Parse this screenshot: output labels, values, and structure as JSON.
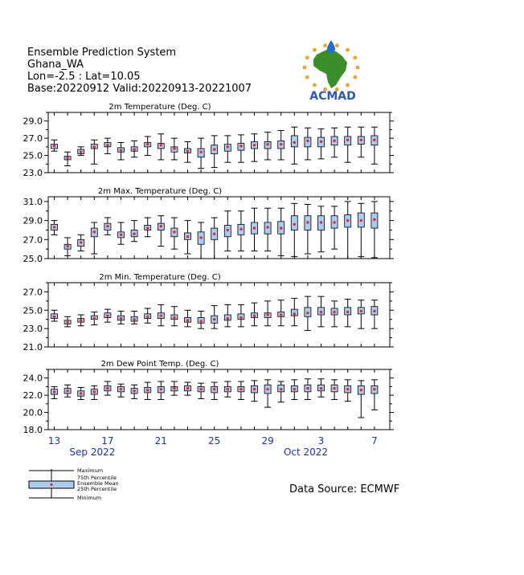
{
  "header": {
    "title": "Ensemble Prediction System",
    "region": "Ghana_WA",
    "coords": "Lon=-2.5 : Lat=10.05",
    "base_valid": "Base:20220912 Valid:20220913-20221007"
  },
  "logo": {
    "text": "ACMAD",
    "colors": {
      "africa": "#3a8f2b",
      "drop": "#1e6fd6",
      "sun": "#f2a21e",
      "text": "#2a57b8"
    }
  },
  "source": "Data Source: ECMWF",
  "colors": {
    "box": "#a9cdf2",
    "mean": "#e8232b",
    "axis": "#000000",
    "date": "#1a2fc8"
  },
  "x_axis": {
    "ticks": [
      {
        "day": 1,
        "label": "13"
      },
      {
        "day": 5,
        "label": "17"
      },
      {
        "day": 9,
        "label": "21"
      },
      {
        "day": 13,
        "label": "25"
      },
      {
        "day": 17,
        "label": "29"
      },
      {
        "day": 21,
        "label": "3"
      },
      {
        "day": 25,
        "label": "7"
      }
    ],
    "months": [
      {
        "day": 5,
        "label": "Sep 2022"
      },
      {
        "day": 21,
        "label": "Oct 2022"
      }
    ]
  },
  "legend": {
    "items": [
      "Maximum",
      "75th Percentile",
      "Ensemble Mean",
      "25th Percentile",
      "Minimum"
    ]
  },
  "chart_data": [
    {
      "type": "boxplot",
      "title": "2m Temperature (Deg. C)",
      "ylim": [
        23.0,
        30.0
      ],
      "yticks": [
        "29.0",
        "27.0",
        "25.0",
        "23.0"
      ],
      "ytick_values": [
        29,
        27,
        25,
        23
      ],
      "x": [
        1,
        2,
        3,
        4,
        5,
        6,
        7,
        8,
        9,
        10,
        11,
        12,
        13,
        14,
        15,
        16,
        17,
        18,
        19,
        20,
        21,
        22,
        23,
        24,
        25
      ],
      "min": [
        25.5,
        23.8,
        25.0,
        24.0,
        25.2,
        24.5,
        24.8,
        25.0,
        24.5,
        24.5,
        24.2,
        23.5,
        23.6,
        24.2,
        24.2,
        24.3,
        24.5,
        24.5,
        24.0,
        24.5,
        24.6,
        24.8,
        24.2,
        24.8,
        24.0
      ],
      "q1": [
        25.8,
        24.5,
        25.2,
        25.8,
        26.0,
        25.4,
        25.5,
        26.0,
        25.8,
        25.4,
        25.3,
        24.8,
        25.2,
        25.5,
        25.6,
        25.8,
        25.8,
        25.8,
        26.0,
        26.0,
        26.0,
        26.2,
        26.2,
        26.3,
        26.2
      ],
      "mean": [
        26.1,
        24.7,
        25.4,
        26.0,
        26.2,
        25.6,
        25.7,
        26.3,
        26.2,
        25.8,
        25.5,
        25.4,
        25.7,
        26.0,
        26.1,
        26.2,
        26.3,
        26.3,
        26.5,
        26.7,
        26.6,
        26.7,
        26.8,
        26.8,
        26.8
      ],
      "q3": [
        26.3,
        24.9,
        25.7,
        26.3,
        26.5,
        25.9,
        26.0,
        26.5,
        26.4,
        26.0,
        25.8,
        25.8,
        26.2,
        26.3,
        26.4,
        26.6,
        26.6,
        26.7,
        27.3,
        27.1,
        27.1,
        27.2,
        27.2,
        27.2,
        27.3
      ],
      "max": [
        26.8,
        25.4,
        26.0,
        26.8,
        27.0,
        26.5,
        26.7,
        27.2,
        27.5,
        27.0,
        26.6,
        27.0,
        27.3,
        27.3,
        27.4,
        27.5,
        27.7,
        27.9,
        28.3,
        28.2,
        28.1,
        28.2,
        28.3,
        28.3,
        28.3
      ]
    },
    {
      "type": "boxplot",
      "title": "2m Max. Temperature (Deg. C)",
      "ylim": [
        25.0,
        31.5
      ],
      "yticks": [
        "31.0",
        "29.0",
        "27.0",
        "25.0"
      ],
      "ytick_values": [
        31,
        29,
        27,
        25
      ],
      "x": [
        1,
        2,
        3,
        4,
        5,
        6,
        7,
        8,
        9,
        10,
        11,
        12,
        13,
        14,
        15,
        16,
        17,
        18,
        19,
        20,
        21,
        22,
        23,
        24,
        25
      ],
      "min": [
        27.5,
        25.3,
        25.8,
        25.5,
        27.5,
        26.5,
        26.8,
        27.3,
        26.3,
        26.0,
        25.5,
        25.0,
        25.0,
        25.8,
        25.8,
        25.8,
        25.8,
        25.3,
        25.2,
        25.5,
        25.7,
        26.0,
        25.0,
        25.2,
        25.1
      ],
      "q1": [
        28.0,
        26.0,
        26.3,
        27.3,
        28.0,
        27.2,
        27.3,
        28.0,
        28.0,
        27.3,
        27.0,
        26.5,
        27.0,
        27.3,
        27.5,
        27.6,
        27.6,
        27.6,
        28.0,
        28.0,
        28.0,
        28.2,
        28.3,
        28.3,
        28.2
      ],
      "mean": [
        28.3,
        26.3,
        26.7,
        27.8,
        28.4,
        27.5,
        27.6,
        28.2,
        28.4,
        27.8,
        27.3,
        27.2,
        27.6,
        28.0,
        28.1,
        28.2,
        28.3,
        28.2,
        28.6,
        28.8,
        28.8,
        28.8,
        29.0,
        29.0,
        29.1
      ],
      "q3": [
        28.6,
        26.5,
        27.0,
        28.2,
        28.7,
        27.8,
        28.0,
        28.5,
        28.7,
        28.2,
        27.7,
        27.8,
        28.2,
        28.5,
        28.6,
        28.8,
        28.8,
        28.9,
        29.5,
        29.5,
        29.5,
        29.5,
        29.6,
        29.8,
        29.8
      ],
      "max": [
        29.0,
        27.2,
        27.5,
        28.8,
        29.3,
        28.8,
        29.0,
        29.3,
        29.5,
        29.3,
        29.0,
        28.8,
        29.3,
        30.0,
        30.0,
        30.3,
        30.3,
        30.3,
        30.8,
        30.7,
        30.5,
        30.5,
        31.0,
        30.8,
        31.0
      ]
    },
    {
      "type": "boxplot",
      "title": "2m Min. Temperature (Deg. C)",
      "ylim": [
        21.0,
        28.0
      ],
      "yticks": [
        "27.0",
        "25.0",
        "23.0",
        "21.0"
      ],
      "ytick_values": [
        27,
        25,
        23,
        21
      ],
      "x": [
        1,
        2,
        3,
        4,
        5,
        6,
        7,
        8,
        9,
        10,
        11,
        12,
        13,
        14,
        15,
        16,
        17,
        18,
        19,
        20,
        21,
        22,
        23,
        24,
        25
      ],
      "min": [
        23.8,
        23.2,
        23.3,
        23.4,
        23.7,
        23.5,
        23.5,
        23.6,
        23.3,
        23.3,
        23.2,
        23.0,
        23.0,
        23.2,
        23.2,
        23.3,
        23.3,
        23.3,
        23.3,
        22.8,
        23.2,
        23.2,
        23.2,
        23.0,
        23.0
      ],
      "q1": [
        24.1,
        23.5,
        23.7,
        24.0,
        24.2,
        23.9,
        23.8,
        24.1,
        24.1,
        24.0,
        23.7,
        23.6,
        23.6,
        23.9,
        24.0,
        24.2,
        24.2,
        24.3,
        24.4,
        24.3,
        24.5,
        24.5,
        24.5,
        24.6,
        24.5
      ],
      "mean": [
        24.3,
        23.7,
        23.9,
        24.1,
        24.4,
        24.1,
        24.0,
        24.3,
        24.4,
        24.2,
        23.9,
        23.8,
        24.0,
        24.1,
        24.2,
        24.4,
        24.5,
        24.5,
        24.6,
        24.7,
        24.8,
        24.8,
        24.8,
        24.9,
        24.9
      ],
      "q3": [
        24.6,
        23.9,
        24.1,
        24.4,
        24.7,
        24.4,
        24.3,
        24.6,
        24.7,
        24.5,
        24.2,
        24.2,
        24.4,
        24.5,
        24.6,
        24.7,
        24.7,
        24.8,
        25.1,
        25.3,
        25.3,
        25.2,
        25.3,
        25.3,
        25.4
      ],
      "max": [
        25.0,
        24.3,
        24.5,
        24.8,
        25.1,
        24.9,
        24.9,
        25.2,
        25.6,
        25.4,
        25.0,
        24.9,
        25.5,
        25.6,
        25.6,
        25.8,
        26.0,
        26.1,
        26.3,
        26.5,
        26.5,
        26.0,
        26.2,
        26.1,
        26.1
      ]
    },
    {
      "type": "boxplot",
      "title": "2m Dew Point Temp. (Deg. C)",
      "ylim": [
        18.0,
        25.0
      ],
      "yticks": [
        "24.0",
        "22.0",
        "20.0",
        "18.0"
      ],
      "ytick_values": [
        24,
        22,
        20,
        18
      ],
      "x": [
        1,
        2,
        3,
        4,
        5,
        6,
        7,
        8,
        9,
        10,
        11,
        12,
        13,
        14,
        15,
        16,
        17,
        18,
        19,
        20,
        21,
        22,
        23,
        24,
        25
      ],
      "min": [
        21.6,
        21.8,
        21.5,
        21.5,
        22.0,
        21.8,
        21.6,
        21.5,
        21.5,
        22.0,
        22.0,
        21.6,
        21.5,
        21.8,
        21.5,
        21.3,
        20.6,
        21.2,
        21.5,
        21.5,
        21.8,
        21.5,
        21.3,
        19.4,
        20.3
      ],
      "q1": [
        22.1,
        22.2,
        21.9,
        22.1,
        22.5,
        22.4,
        22.2,
        22.3,
        22.3,
        22.5,
        22.5,
        22.4,
        22.3,
        22.4,
        22.4,
        22.3,
        22.2,
        22.4,
        22.4,
        22.4,
        22.5,
        22.4,
        22.3,
        22.1,
        22.2
      ],
      "mean": [
        22.4,
        22.5,
        22.2,
        22.4,
        22.8,
        22.7,
        22.5,
        22.6,
        22.7,
        22.8,
        22.8,
        22.7,
        22.7,
        22.7,
        22.7,
        22.7,
        22.7,
        22.7,
        22.7,
        22.8,
        22.8,
        22.8,
        22.7,
        22.6,
        22.7
      ],
      "q3": [
        22.7,
        22.8,
        22.5,
        22.7,
        23.1,
        23.0,
        22.8,
        22.9,
        23.0,
        23.0,
        23.1,
        23.0,
        23.0,
        23.0,
        23.0,
        23.1,
        23.2,
        23.2,
        23.1,
        23.2,
        23.2,
        23.2,
        23.1,
        23.1,
        23.1
      ],
      "max": [
        23.0,
        23.2,
        22.9,
        23.1,
        23.6,
        23.3,
        23.2,
        23.5,
        23.6,
        23.6,
        23.5,
        23.4,
        23.5,
        23.6,
        23.6,
        23.7,
        23.8,
        23.6,
        23.8,
        23.9,
        23.9,
        23.8,
        23.8,
        23.7,
        23.8
      ]
    }
  ]
}
